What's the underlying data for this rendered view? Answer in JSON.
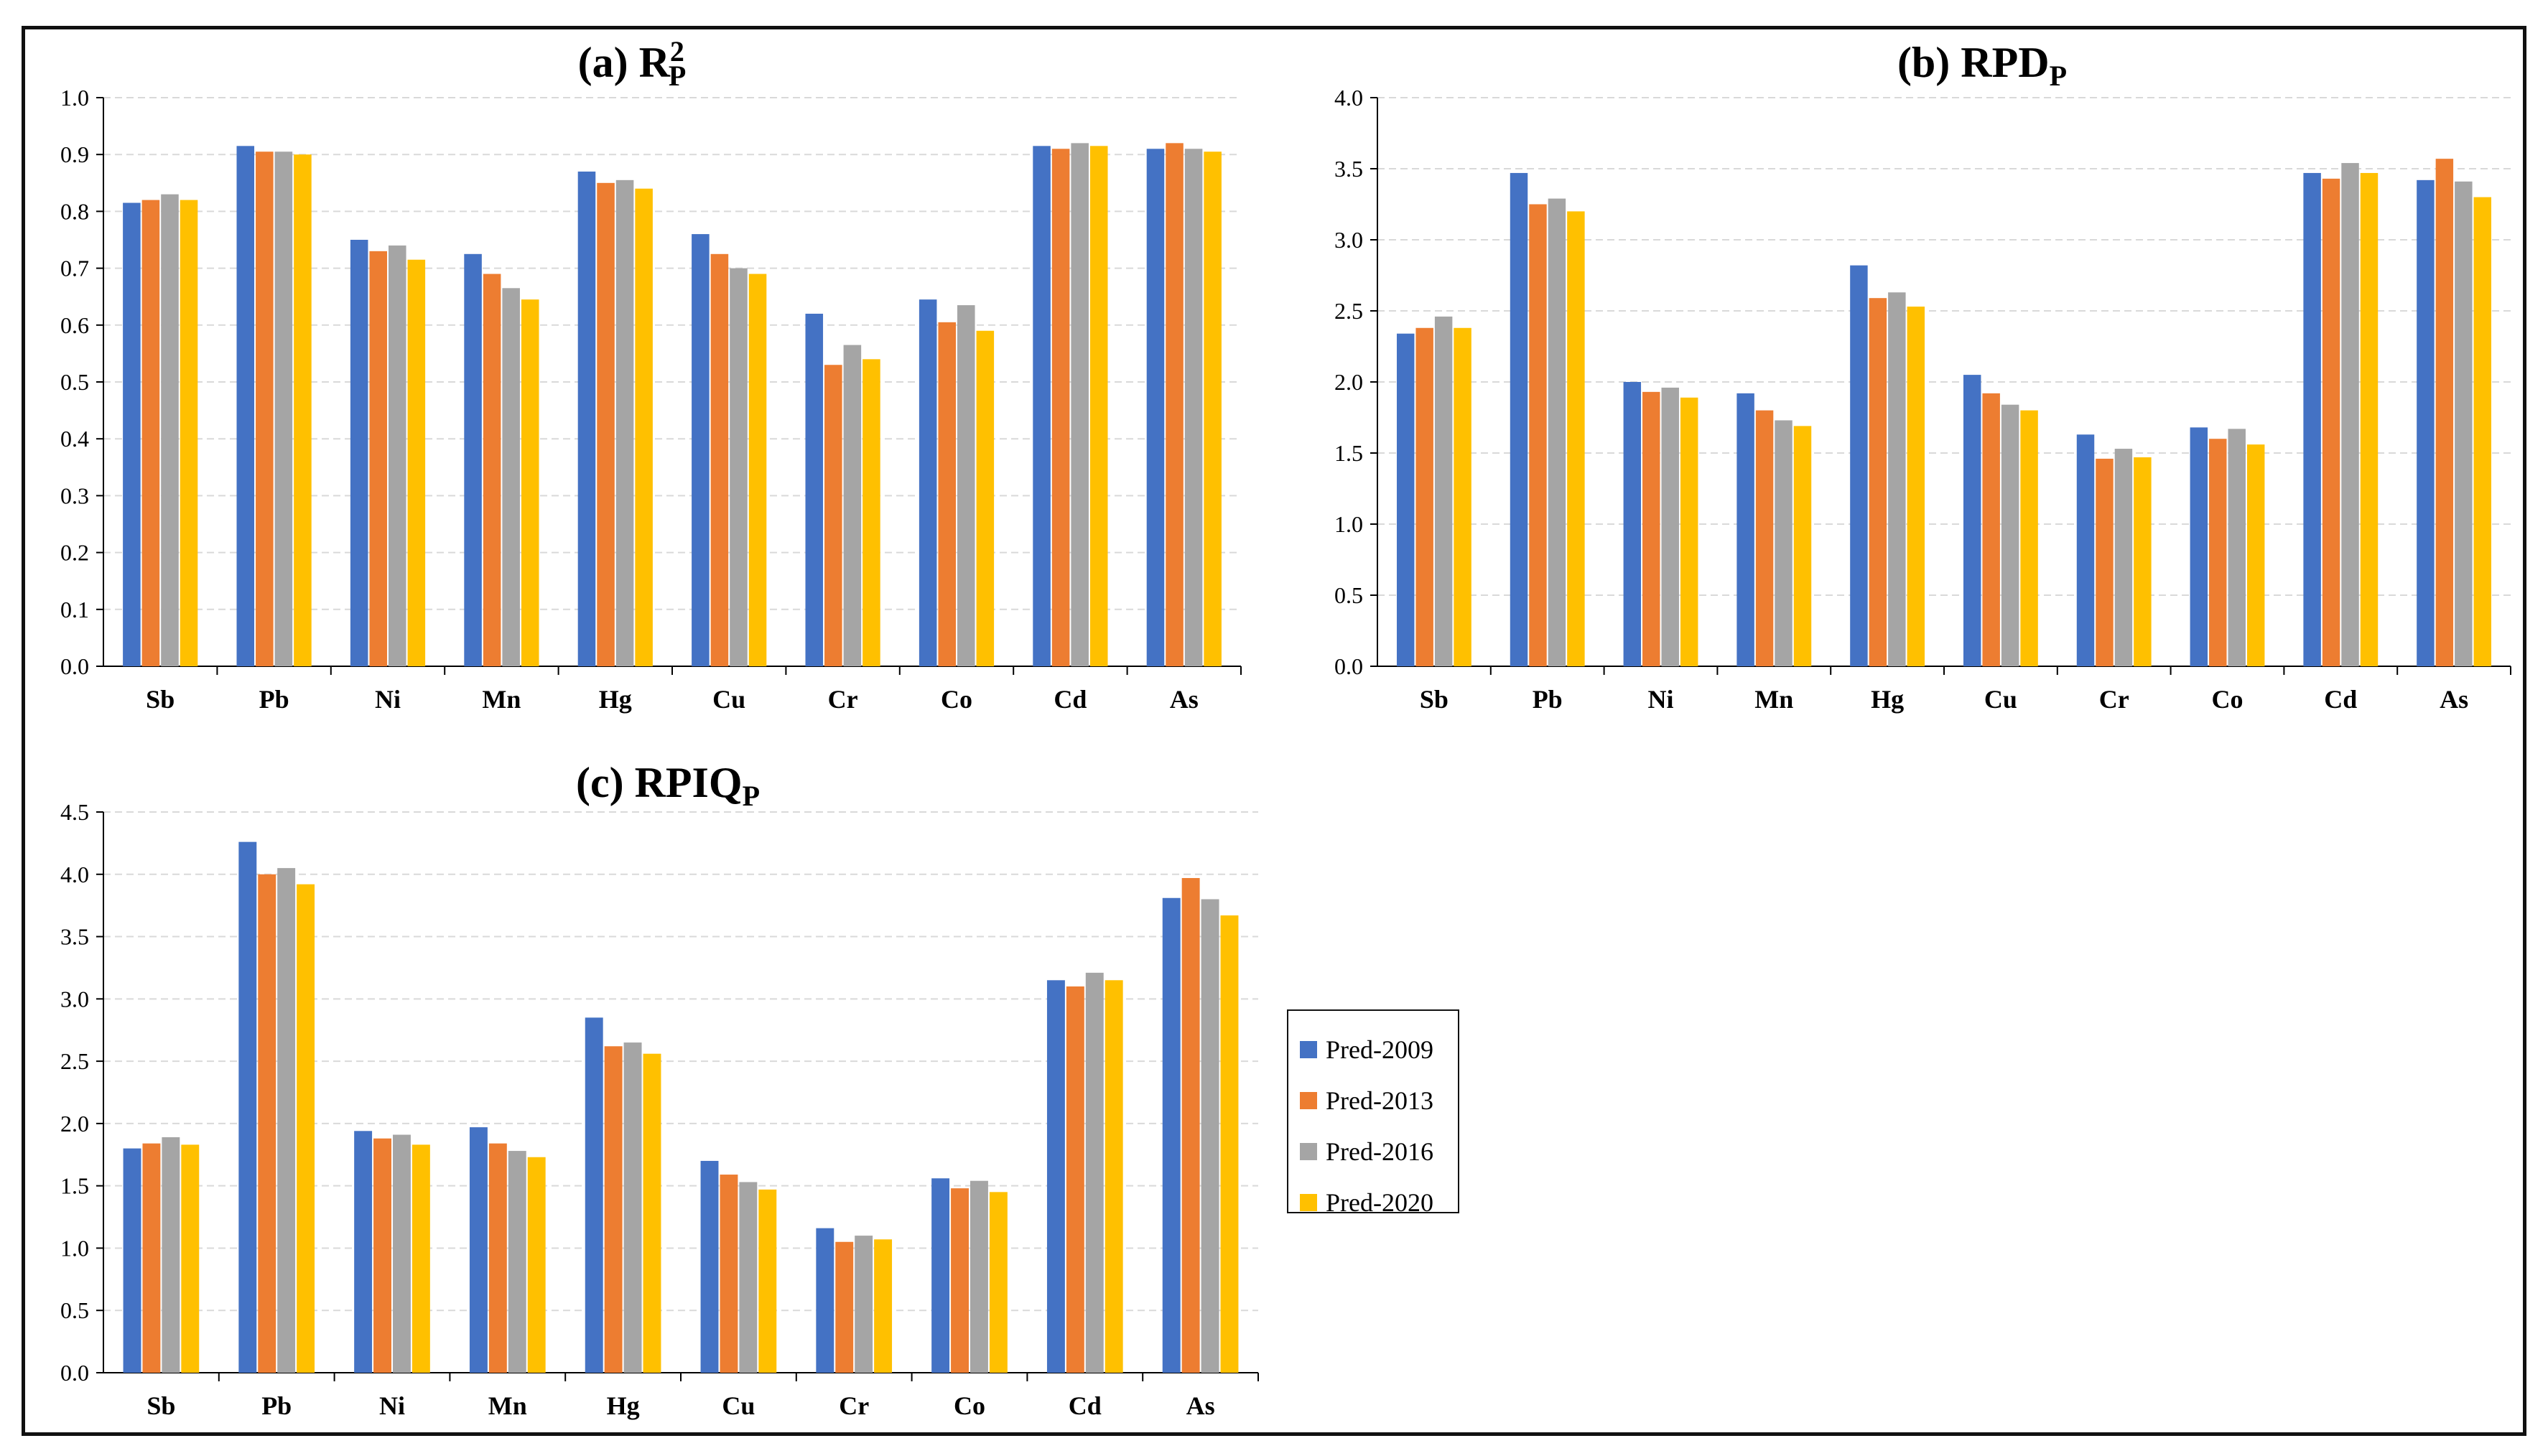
{
  "colors": {
    "Pred-2009": "#4472C4",
    "Pred-2013": "#ED7D31",
    "Pred-2016": "#A5A5A5",
    "Pred-2020": "#FFC000"
  },
  "legend": {
    "items": [
      {
        "label": "Pred-2009",
        "color": "#4472C4"
      },
      {
        "label": "Pred-2013",
        "color": "#ED7D31"
      },
      {
        "label": "Pred-2016",
        "color": "#A5A5A5"
      },
      {
        "label": "Pred-2020",
        "color": "#FFC000"
      }
    ],
    "placement": "right of panel (c)"
  },
  "chart_data": [
    {
      "type": "bar",
      "title": {
        "prefix": "(a) R",
        "sup": "2",
        "sub": "P"
      },
      "categories": [
        "Sb",
        "Pb",
        "Ni",
        "Mn",
        "Hg",
        "Cu",
        "Cr",
        "Co",
        "Cd",
        "As"
      ],
      "ylim": [
        0,
        1.0
      ],
      "yticks": [
        "0.0",
        "0.1",
        "0.2",
        "0.3",
        "0.4",
        "0.5",
        "0.6",
        "0.7",
        "0.8",
        "0.9",
        "1.0"
      ],
      "grid": true,
      "series": [
        {
          "name": "Pred-2009",
          "values": [
            0.815,
            0.915,
            0.75,
            0.725,
            0.87,
            0.76,
            0.62,
            0.645,
            0.915,
            0.91
          ]
        },
        {
          "name": "Pred-2013",
          "values": [
            0.82,
            0.905,
            0.73,
            0.69,
            0.85,
            0.725,
            0.53,
            0.605,
            0.91,
            0.92
          ]
        },
        {
          "name": "Pred-2016",
          "values": [
            0.83,
            0.905,
            0.74,
            0.665,
            0.855,
            0.7,
            0.565,
            0.635,
            0.92,
            0.91
          ]
        },
        {
          "name": "Pred-2020",
          "values": [
            0.82,
            0.9,
            0.715,
            0.645,
            0.84,
            0.69,
            0.54,
            0.59,
            0.915,
            0.905
          ]
        }
      ]
    },
    {
      "type": "bar",
      "title": {
        "prefix": "(b) RPD",
        "sup": "",
        "sub": "P"
      },
      "categories": [
        "Sb",
        "Pb",
        "Ni",
        "Mn",
        "Hg",
        "Cu",
        "Cr",
        "Co",
        "Cd",
        "As"
      ],
      "ylim": [
        0,
        4.0
      ],
      "yticks": [
        "0.0",
        "0.5",
        "1.0",
        "1.5",
        "2.0",
        "2.5",
        "3.0",
        "3.5",
        "4.0"
      ],
      "grid": true,
      "series": [
        {
          "name": "Pred-2009",
          "values": [
            2.34,
            3.47,
            2.0,
            1.92,
            2.82,
            2.05,
            1.63,
            1.68,
            3.47,
            3.42
          ]
        },
        {
          "name": "Pred-2013",
          "values": [
            2.38,
            3.25,
            1.93,
            1.8,
            2.59,
            1.92,
            1.46,
            1.6,
            3.43,
            3.57
          ]
        },
        {
          "name": "Pred-2016",
          "values": [
            2.46,
            3.29,
            1.96,
            1.73,
            2.63,
            1.84,
            1.53,
            1.67,
            3.54,
            3.41
          ]
        },
        {
          "name": "Pred-2020",
          "values": [
            2.38,
            3.2,
            1.89,
            1.69,
            2.53,
            1.8,
            1.47,
            1.56,
            3.47,
            3.3
          ]
        }
      ]
    },
    {
      "type": "bar",
      "title": {
        "prefix": "(c) RPIQ",
        "sup": "",
        "sub": "P"
      },
      "categories": [
        "Sb",
        "Pb",
        "Ni",
        "Mn",
        "Hg",
        "Cu",
        "Cr",
        "Co",
        "Cd",
        "As"
      ],
      "ylim": [
        0,
        4.5
      ],
      "yticks": [
        "0.0",
        "0.5",
        "1.0",
        "1.5",
        "2.0",
        "2.5",
        "3.0",
        "3.5",
        "4.0",
        "4.5"
      ],
      "grid": true,
      "series": [
        {
          "name": "Pred-2009",
          "values": [
            1.8,
            4.26,
            1.94,
            1.97,
            2.85,
            1.7,
            1.16,
            1.56,
            3.15,
            3.81
          ]
        },
        {
          "name": "Pred-2013",
          "values": [
            1.84,
            4.0,
            1.88,
            1.84,
            2.62,
            1.59,
            1.05,
            1.48,
            3.1,
            3.97
          ]
        },
        {
          "name": "Pred-2016",
          "values": [
            1.89,
            4.05,
            1.91,
            1.78,
            2.65,
            1.53,
            1.1,
            1.54,
            3.21,
            3.8
          ]
        },
        {
          "name": "Pred-2020",
          "values": [
            1.83,
            3.92,
            1.83,
            1.73,
            2.56,
            1.47,
            1.07,
            1.45,
            3.15,
            3.67
          ]
        }
      ]
    }
  ]
}
